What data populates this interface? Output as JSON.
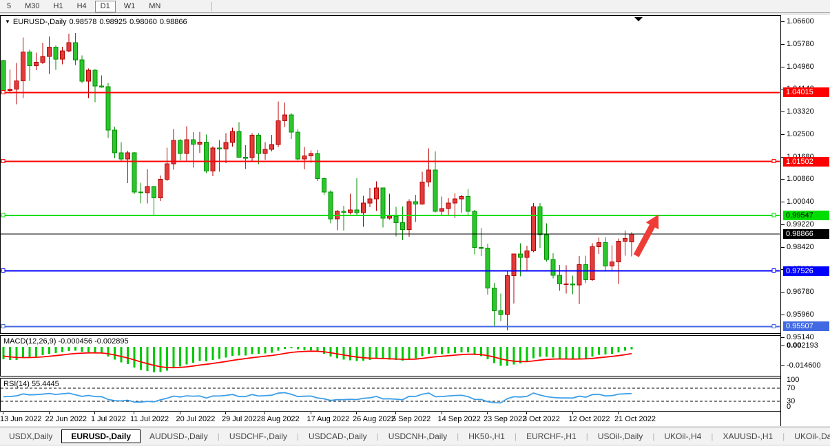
{
  "toolbar": {
    "timeframes": [
      "5",
      "M30",
      "H1",
      "H4",
      "D1",
      "W1",
      "MN"
    ],
    "active_timeframe": "D1"
  },
  "header": {
    "symbol": "EURUSD-,Daily",
    "open": "0.98578",
    "high": "0.98925",
    "low": "0.98060",
    "close": "0.98866"
  },
  "macd_panel": {
    "label": "MACD(12,26,9) -0.000456 -0.002895",
    "axis_max": "0.002193",
    "axis_zero": "0.00",
    "axis_min": "-0.014600"
  },
  "rsi_panel": {
    "label": "RSI(14) 55.4445",
    "axis": [
      "100",
      "70",
      "30",
      "0"
    ],
    "levels": [
      70,
      30
    ]
  },
  "tabs": {
    "items": [
      "USDX,Daily",
      "EURUSD-,Daily",
      "AUDUSD-,Daily",
      "USDCHF-,Daily",
      "USDCAD-,Daily",
      "USDCNH-,Daily",
      "HK50-,H1",
      "EURCHF-,H1",
      "USOil-,Daily",
      "UKOil-,H4",
      "XAUUSD-,H1",
      "UKOil-,Daily"
    ],
    "active": "EURUSD-,Daily",
    "scroll_left": "◂",
    "scroll_right": "▸"
  },
  "chart_data": {
    "type": "candlestick",
    "symbol": "EURUSD-",
    "timeframe": "Daily",
    "title": "EURUSD-,Daily 0.98578 0.98925 0.98060 0.98866",
    "y_axis": {
      "min": 0.9514,
      "max": 1.066,
      "tick_step": 0.0082,
      "ticks": [
        "1.06600",
        "1.05780",
        "1.04960",
        "1.04140",
        "1.03320",
        "1.02500",
        "1.01680",
        "1.00860",
        "1.00040",
        "0.99220",
        "0.98420",
        "0.97600",
        "0.96780",
        "0.95960",
        "0.95140"
      ]
    },
    "x_axis": {
      "labels": [
        {
          "text": "13 Jun 2022",
          "i": 0
        },
        {
          "text": "22 Jun 2022",
          "i": 7
        },
        {
          "text": "1 Jul 2022",
          "i": 14
        },
        {
          "text": "11 Jul 2022",
          "i": 20
        },
        {
          "text": "20 Jul 2022",
          "i": 27
        },
        {
          "text": "29 Jul 2022",
          "i": 34
        },
        {
          "text": "8 Aug 2022",
          "i": 40
        },
        {
          "text": "17 Aug 2022",
          "i": 47
        },
        {
          "text": "26 Aug 2022",
          "i": 54
        },
        {
          "text": "5 Sep 2022",
          "i": 60
        },
        {
          "text": "14 Sep 2022",
          "i": 67
        },
        {
          "text": "23 Sep 2022",
          "i": 74
        },
        {
          "text": "3 Oct 2022",
          "i": 80
        },
        {
          "text": "12 Oct 2022",
          "i": 87
        },
        {
          "text": "21 Oct 2022",
          "i": 94
        }
      ]
    },
    "hlines": [
      {
        "price": 1.04015,
        "label": "1.04015",
        "color": "#ff0000",
        "label_text_color": "#ffffff",
        "right_handle": false
      },
      {
        "price": 1.01502,
        "label": "1.01502",
        "color": "#ff0000",
        "label_text_color": "#ffffff",
        "right_handle": true
      },
      {
        "price": 0.99547,
        "label": "0.99547",
        "color": "#00dd00",
        "label_text_color": "#000000",
        "right_handle": true
      },
      {
        "price": 0.97526,
        "label": "0.97526",
        "color": "#0000ff",
        "label_text_color": "#ffffff",
        "right_handle": true
      },
      {
        "price": 0.95507,
        "label": "0.95507",
        "color": "#4169e1",
        "label_text_color": "#ffffff",
        "right_handle": true
      }
    ],
    "bid_line": {
      "price": 0.98866,
      "label": "0.98866",
      "color": "#000000",
      "label_text_color": "#ffffff"
    },
    "arrow_annotation": {
      "x_from_index": 96.7,
      "price_from": 0.9808,
      "x_to_index": 100.1,
      "price_to": 0.9958,
      "color": "#ee3c36"
    },
    "colors": {
      "bull": "#e23b3b",
      "bull_border": "#b40000",
      "bear": "#2dc52d",
      "bear_border": "#009100",
      "background": "#ffffff",
      "macd_histogram": "#00c800",
      "macd_signal": "#ff0000",
      "rsi_line": "#3d9fe8"
    },
    "indicators": [
      {
        "name": "MACD",
        "params": [
          12,
          26,
          9
        ],
        "values": [
          -0.000456,
          -0.002895
        ]
      },
      {
        "name": "RSI",
        "params": [
          14
        ],
        "value": 55.4445
      }
    ],
    "candles": [
      [
        "2022-06-13",
        1.0518,
        1.052,
        1.04,
        1.0409
      ],
      [
        "2022-06-14",
        1.0409,
        1.0485,
        1.0397,
        1.0414
      ],
      [
        "2022-06-15",
        1.0414,
        1.0508,
        1.0359,
        1.0444
      ],
      [
        "2022-06-16",
        1.0444,
        1.0601,
        1.0381,
        1.0549
      ],
      [
        "2022-06-17",
        1.0549,
        1.0557,
        1.0444,
        1.0498
      ],
      [
        "2022-06-20",
        1.0498,
        1.0546,
        1.0482,
        1.0511
      ],
      [
        "2022-06-21",
        1.0511,
        1.0582,
        1.0505,
        1.0533
      ],
      [
        "2022-06-22",
        1.0533,
        1.0605,
        1.0469,
        1.0566
      ],
      [
        "2022-06-23",
        1.0566,
        1.0573,
        1.0483,
        1.0523
      ],
      [
        "2022-06-24",
        1.0523,
        1.0568,
        1.0503,
        1.0553
      ],
      [
        "2022-06-27",
        1.0553,
        1.0615,
        1.0548,
        1.0583
      ],
      [
        "2022-06-28",
        1.0583,
        1.0617,
        1.0501,
        1.052
      ],
      [
        "2022-06-29",
        1.052,
        1.0536,
        1.0435,
        1.0442
      ],
      [
        "2022-06-30",
        1.0442,
        1.0488,
        1.0381,
        1.0482
      ],
      [
        "2022-07-01",
        1.0482,
        1.0486,
        1.0366,
        1.0425
      ],
      [
        "2022-07-04",
        1.0425,
        1.0463,
        1.0419,
        1.0422
      ],
      [
        "2022-07-05",
        1.0422,
        1.0436,
        1.0236,
        1.0265
      ],
      [
        "2022-07-06",
        1.0265,
        1.0277,
        1.0162,
        1.0182
      ],
      [
        "2022-07-07",
        1.0182,
        1.0221,
        1.0153,
        1.016
      ],
      [
        "2022-07-08",
        1.016,
        1.019,
        1.0072,
        1.0182
      ],
      [
        "2022-07-11",
        1.0182,
        1.0184,
        1.0032,
        1.004
      ],
      [
        "2022-07-12",
        1.004,
        1.0073,
        0.9998,
        1.0037
      ],
      [
        "2022-07-13",
        1.0037,
        1.0122,
        0.9998,
        1.006
      ],
      [
        "2022-07-14",
        1.006,
        1.0062,
        0.9952,
        1.0018
      ],
      [
        "2022-07-15",
        1.0018,
        1.01,
        1.0007,
        1.0086
      ],
      [
        "2022-07-18",
        1.0086,
        1.0201,
        1.0079,
        1.0142
      ],
      [
        "2022-07-19",
        1.0142,
        1.0269,
        1.0121,
        1.0227
      ],
      [
        "2022-07-20",
        1.0227,
        1.0232,
        1.0155,
        1.018
      ],
      [
        "2022-07-21",
        1.018,
        1.0278,
        1.0152,
        1.0229
      ],
      [
        "2022-07-22",
        1.0229,
        1.0257,
        1.0128,
        1.0213
      ],
      [
        "2022-07-25",
        1.0213,
        1.0258,
        1.0182,
        1.0221
      ],
      [
        "2022-07-26",
        1.0221,
        1.0249,
        1.0108,
        1.0116
      ],
      [
        "2022-07-27",
        1.0116,
        1.0206,
        1.0097,
        1.0199
      ],
      [
        "2022-07-28",
        1.0199,
        1.0228,
        1.0113,
        1.0196
      ],
      [
        "2022-07-29",
        1.0196,
        1.0254,
        1.0145,
        1.022
      ],
      [
        "2022-08-01",
        1.022,
        1.0274,
        1.0205,
        1.026
      ],
      [
        "2022-08-02",
        1.026,
        1.0293,
        1.0166,
        1.0166
      ],
      [
        "2022-08-03",
        1.0166,
        1.0209,
        1.0123,
        1.0165
      ],
      [
        "2022-08-04",
        1.0165,
        1.0254,
        1.0152,
        1.0246
      ],
      [
        "2022-08-05",
        1.0246,
        1.0253,
        1.0141,
        1.018
      ],
      [
        "2022-08-08",
        1.018,
        1.0221,
        1.0157,
        1.0194
      ],
      [
        "2022-08-09",
        1.0194,
        1.0247,
        1.0187,
        1.0212
      ],
      [
        "2022-08-10",
        1.0212,
        1.0368,
        1.0202,
        1.0298
      ],
      [
        "2022-08-11",
        1.0298,
        1.0365,
        1.0276,
        1.032
      ],
      [
        "2022-08-12",
        1.032,
        1.0326,
        1.0232,
        1.0257
      ],
      [
        "2022-08-15",
        1.0257,
        1.0268,
        1.0154,
        1.0159
      ],
      [
        "2022-08-16",
        1.0159,
        1.0203,
        1.0122,
        1.0171
      ],
      [
        "2022-08-17",
        1.0171,
        1.0191,
        1.0146,
        1.0179
      ],
      [
        "2022-08-18",
        1.0179,
        1.0192,
        1.0079,
        1.0088
      ],
      [
        "2022-08-19",
        1.0088,
        1.0092,
        1.003,
        1.004
      ],
      [
        "2022-08-22",
        1.004,
        1.0046,
        0.9926,
        0.9942
      ],
      [
        "2022-08-23",
        0.9942,
        0.9975,
        0.9901,
        0.997
      ],
      [
        "2022-08-24",
        0.997,
        0.999,
        0.9899,
        0.9966
      ],
      [
        "2022-08-25",
        0.9966,
        1.0033,
        0.9958,
        0.9975
      ],
      [
        "2022-08-26",
        0.9975,
        1.009,
        0.9954,
        0.9965
      ],
      [
        "2022-08-29",
        0.9965,
        1.0026,
        0.9913,
        0.9999
      ],
      [
        "2022-08-30",
        0.9999,
        1.0054,
        0.9984,
        1.0014
      ],
      [
        "2022-08-31",
        1.0014,
        1.0078,
        0.9971,
        1.0054
      ],
      [
        "2022-09-01",
        1.0054,
        1.0055,
        0.991,
        0.9945
      ],
      [
        "2022-09-02",
        0.9945,
        1.0033,
        0.9939,
        0.9952
      ],
      [
        "2022-09-05",
        0.9952,
        0.9986,
        0.9878,
        0.9928
      ],
      [
        "2022-09-06",
        0.9928,
        0.9987,
        0.9864,
        0.9903
      ],
      [
        "2022-09-07",
        0.9903,
        1.0013,
        0.9877,
        1.0004
      ],
      [
        "2022-09-08",
        1.0004,
        1.0029,
        0.993,
        0.9996
      ],
      [
        "2022-09-09",
        0.9996,
        1.0113,
        0.9993,
        1.0076
      ],
      [
        "2022-09-12",
        1.0076,
        1.0198,
        1.0058,
        1.012
      ],
      [
        "2022-09-13",
        1.012,
        1.0187,
        0.9966,
        0.997
      ],
      [
        "2022-09-14",
        0.997,
        1.0023,
        0.9955,
        0.9979
      ],
      [
        "2022-09-15",
        0.9979,
        1.0017,
        0.9954,
        0.9999
      ],
      [
        "2022-09-16",
        0.9999,
        1.0036,
        0.9944,
        1.0015
      ],
      [
        "2022-09-19",
        1.0015,
        1.0029,
        0.9964,
        1.0023
      ],
      [
        "2022-09-20",
        1.0023,
        1.0051,
        0.9955,
        0.997
      ],
      [
        "2022-09-21",
        0.997,
        0.9974,
        0.9813,
        0.9838
      ],
      [
        "2022-09-22",
        0.9838,
        0.9908,
        0.9807,
        0.9835
      ],
      [
        "2022-09-23",
        0.9835,
        0.9852,
        0.9667,
        0.969
      ],
      [
        "2022-09-26",
        0.969,
        0.9709,
        0.9551,
        0.9608
      ],
      [
        "2022-09-27",
        0.9608,
        0.9671,
        0.957,
        0.9594
      ],
      [
        "2022-09-28",
        0.9594,
        0.975,
        0.9537,
        0.9735
      ],
      [
        "2022-09-29",
        0.9735,
        0.9816,
        0.9634,
        0.9814
      ],
      [
        "2022-09-30",
        0.9814,
        0.9853,
        0.9733,
        0.9802
      ],
      [
        "2022-10-03",
        0.9802,
        0.9844,
        0.9751,
        0.9826
      ],
      [
        "2022-10-04",
        0.9826,
        1.0,
        0.982,
        0.9986
      ],
      [
        "2022-10-05",
        0.9986,
        0.9999,
        0.9835,
        0.9884
      ],
      [
        "2022-10-06",
        0.9884,
        0.9926,
        0.9787,
        0.9794
      ],
      [
        "2022-10-07",
        0.9794,
        0.9817,
        0.9726,
        0.9737
      ],
      [
        "2022-10-10",
        0.9737,
        0.9774,
        0.9681,
        0.9705
      ],
      [
        "2022-10-11",
        0.9705,
        0.9773,
        0.967,
        0.9706
      ],
      [
        "2022-10-12",
        0.9706,
        0.9735,
        0.9668,
        0.9702
      ],
      [
        "2022-10-13",
        0.9702,
        0.9807,
        0.9632,
        0.9776
      ],
      [
        "2022-10-14",
        0.9776,
        0.9808,
        0.9708,
        0.9721
      ],
      [
        "2022-10-17",
        0.9721,
        0.9853,
        0.9717,
        0.984
      ],
      [
        "2022-10-18",
        0.984,
        0.9874,
        0.9814,
        0.9856
      ],
      [
        "2022-10-19",
        0.9856,
        0.9875,
        0.9756,
        0.9771
      ],
      [
        "2022-10-20",
        0.9771,
        0.9845,
        0.9754,
        0.9785
      ],
      [
        "2022-10-21",
        0.9785,
        0.987,
        0.9705,
        0.986
      ],
      [
        "2022-10-24",
        0.986,
        0.9899,
        0.9808,
        0.9871
      ],
      [
        "2022-10-25",
        0.98578,
        0.98925,
        0.9806,
        0.98866
      ]
    ]
  }
}
